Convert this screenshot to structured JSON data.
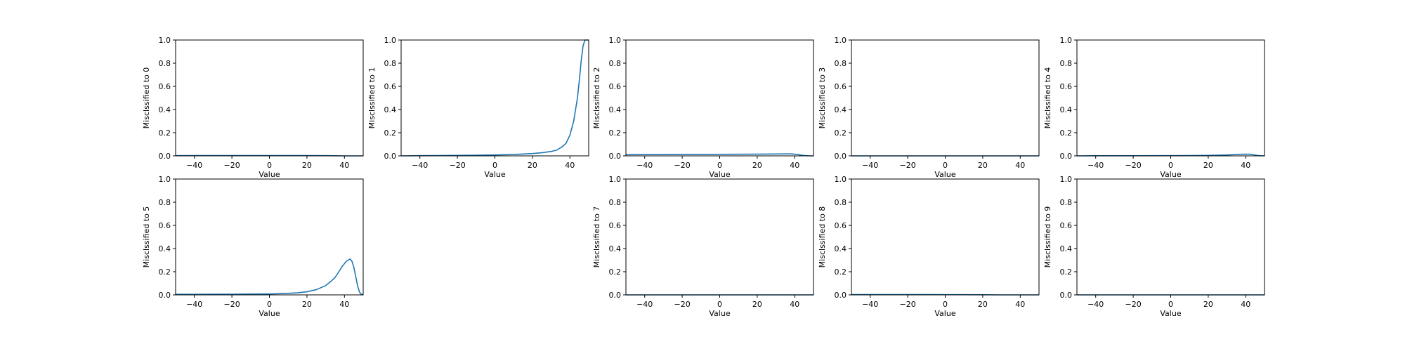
{
  "figure": {
    "line_color": "#1f77b4",
    "axis_color": "#000000",
    "background": "#ffffff"
  },
  "chart_data": [
    {
      "type": "line",
      "ylabel": "Misclssified to 0",
      "xlabel": "Value",
      "xlim": [
        -50,
        50
      ],
      "ylim": [
        0,
        1
      ],
      "grid": false,
      "xticks": [
        "−40",
        "−20",
        "0",
        "20",
        "40"
      ],
      "yticks": [
        "0.0",
        "0.2",
        "0.4",
        "0.6",
        "0.8",
        "1.0"
      ],
      "series": [
        {
          "x": [
            -50,
            -40,
            -30,
            -20,
            -10,
            0,
            10,
            20,
            30,
            35,
            40,
            45,
            50
          ],
          "y": [
            0.002,
            0.003,
            0.003,
            0.003,
            0.003,
            0.003,
            0.003,
            0.003,
            0.002,
            0.001,
            0.0,
            0.0,
            0.0
          ]
        }
      ]
    },
    {
      "type": "line",
      "ylabel": "Misclssified to 1",
      "xlabel": "Value",
      "xlim": [
        -50,
        50
      ],
      "ylim": [
        0,
        1
      ],
      "grid": false,
      "xticks": [
        "−40",
        "−20",
        "0",
        "20",
        "40"
      ],
      "yticks": [
        "0.0",
        "0.2",
        "0.4",
        "0.6",
        "0.8",
        "1.0"
      ],
      "series": [
        {
          "x": [
            -50,
            -40,
            -30,
            -20,
            -10,
            0,
            10,
            20,
            25,
            30,
            33,
            36,
            38,
            40,
            42,
            44,
            45,
            46,
            47,
            48,
            50
          ],
          "y": [
            0.0,
            0.002,
            0.003,
            0.004,
            0.006,
            0.008,
            0.012,
            0.02,
            0.027,
            0.038,
            0.05,
            0.08,
            0.11,
            0.18,
            0.3,
            0.5,
            0.65,
            0.82,
            0.95,
            1.0,
            1.0
          ]
        }
      ]
    },
    {
      "type": "line",
      "ylabel": "Misclssified to 2",
      "xlabel": "Value",
      "xlim": [
        -50,
        50
      ],
      "ylim": [
        0,
        1
      ],
      "grid": false,
      "xticks": [
        "−40",
        "−20",
        "0",
        "20",
        "40"
      ],
      "yticks": [
        "0.0",
        "0.2",
        "0.4",
        "0.6",
        "0.8",
        "1.0"
      ],
      "series": [
        {
          "x": [
            -50,
            -40,
            -30,
            -20,
            -10,
            0,
            10,
            20,
            30,
            35,
            38,
            40,
            42,
            44,
            46,
            48,
            50
          ],
          "y": [
            0.01,
            0.011,
            0.011,
            0.012,
            0.012,
            0.013,
            0.014,
            0.015,
            0.016,
            0.017,
            0.017,
            0.015,
            0.01,
            0.005,
            0.002,
            0.0,
            0.0
          ]
        }
      ]
    },
    {
      "type": "line",
      "ylabel": "Misclssified to 3",
      "xlabel": "Value",
      "xlim": [
        -50,
        50
      ],
      "ylim": [
        0,
        1
      ],
      "grid": false,
      "xticks": [
        "−40",
        "−20",
        "0",
        "20",
        "40"
      ],
      "yticks": [
        "0.0",
        "0.2",
        "0.4",
        "0.6",
        "0.8",
        "1.0"
      ],
      "series": [
        {
          "x": [
            -50,
            -25,
            0,
            25,
            50
          ],
          "y": [
            0.0,
            0.0,
            0.0,
            0.0,
            0.0
          ]
        }
      ]
    },
    {
      "type": "line",
      "ylabel": "Misclssified to 4",
      "xlabel": "Value",
      "xlim": [
        -50,
        50
      ],
      "ylim": [
        0,
        1
      ],
      "grid": false,
      "xticks": [
        "−40",
        "−20",
        "0",
        "20",
        "40"
      ],
      "yticks": [
        "0.0",
        "0.2",
        "0.4",
        "0.6",
        "0.8",
        "1.0"
      ],
      "series": [
        {
          "x": [
            -50,
            -40,
            -20,
            0,
            10,
            20,
            25,
            30,
            35,
            38,
            40,
            42,
            44,
            46,
            48,
            50
          ],
          "y": [
            0.0,
            0.001,
            0.001,
            0.002,
            0.003,
            0.004,
            0.006,
            0.008,
            0.012,
            0.014,
            0.015,
            0.014,
            0.01,
            0.004,
            0.001,
            0.0
          ]
        }
      ]
    },
    {
      "type": "line",
      "ylabel": "Misclssified to 5",
      "xlabel": "Value",
      "xlim": [
        -50,
        50
      ],
      "ylim": [
        0,
        1
      ],
      "grid": false,
      "xticks": [
        "−40",
        "−20",
        "0",
        "20",
        "40"
      ],
      "yticks": [
        "0.0",
        "0.2",
        "0.4",
        "0.6",
        "0.8",
        "1.0"
      ],
      "series": [
        {
          "x": [
            -50,
            -40,
            -30,
            -20,
            -10,
            0,
            5,
            10,
            15,
            20,
            25,
            30,
            33,
            35,
            37,
            39,
            40,
            41,
            42,
            43,
            44,
            45,
            46,
            47,
            48,
            49,
            50
          ],
          "y": [
            0.005,
            0.005,
            0.006,
            0.006,
            0.007,
            0.008,
            0.01,
            0.013,
            0.018,
            0.027,
            0.045,
            0.08,
            0.12,
            0.15,
            0.2,
            0.25,
            0.27,
            0.29,
            0.3,
            0.31,
            0.29,
            0.24,
            0.16,
            0.08,
            0.025,
            0.005,
            0.0
          ]
        }
      ]
    },
    {
      "type": "line",
      "ylabel": "Misclssified to 7",
      "xlabel": "Value",
      "xlim": [
        -50,
        50
      ],
      "ylim": [
        0,
        1
      ],
      "grid": false,
      "xticks": [
        "−40",
        "−20",
        "0",
        "20",
        "40"
      ],
      "yticks": [
        "0.0",
        "0.2",
        "0.4",
        "0.6",
        "0.8",
        "1.0"
      ],
      "series": [
        {
          "x": [
            -50,
            -25,
            0,
            25,
            50
          ],
          "y": [
            0.0,
            0.0,
            0.0,
            0.0,
            0.0
          ]
        }
      ]
    },
    {
      "type": "line",
      "ylabel": "Misclssified to 8",
      "xlabel": "Value",
      "xlim": [
        -50,
        50
      ],
      "ylim": [
        0,
        1
      ],
      "grid": false,
      "xticks": [
        "−40",
        "−20",
        "0",
        "20",
        "40"
      ],
      "yticks": [
        "0.0",
        "0.2",
        "0.4",
        "0.6",
        "0.8",
        "1.0"
      ],
      "series": [
        {
          "x": [
            -50,
            -40,
            -30,
            -20,
            -10,
            0,
            10,
            20,
            30,
            40,
            50
          ],
          "y": [
            0.003,
            0.003,
            0.003,
            0.003,
            0.003,
            0.002,
            0.002,
            0.001,
            0.0,
            0.0,
            0.0
          ]
        }
      ]
    },
    {
      "type": "line",
      "ylabel": "Misclssified to 9",
      "xlabel": "Value",
      "xlim": [
        -50,
        50
      ],
      "ylim": [
        0,
        1
      ],
      "grid": false,
      "xticks": [
        "−40",
        "−20",
        "0",
        "20",
        "40"
      ],
      "yticks": [
        "0.0",
        "0.2",
        "0.4",
        "0.6",
        "0.8",
        "1.0"
      ],
      "series": [
        {
          "x": [
            -50,
            -25,
            0,
            25,
            50
          ],
          "y": [
            0.0,
            0.0,
            0.0,
            0.0,
            0.0
          ]
        }
      ]
    }
  ]
}
